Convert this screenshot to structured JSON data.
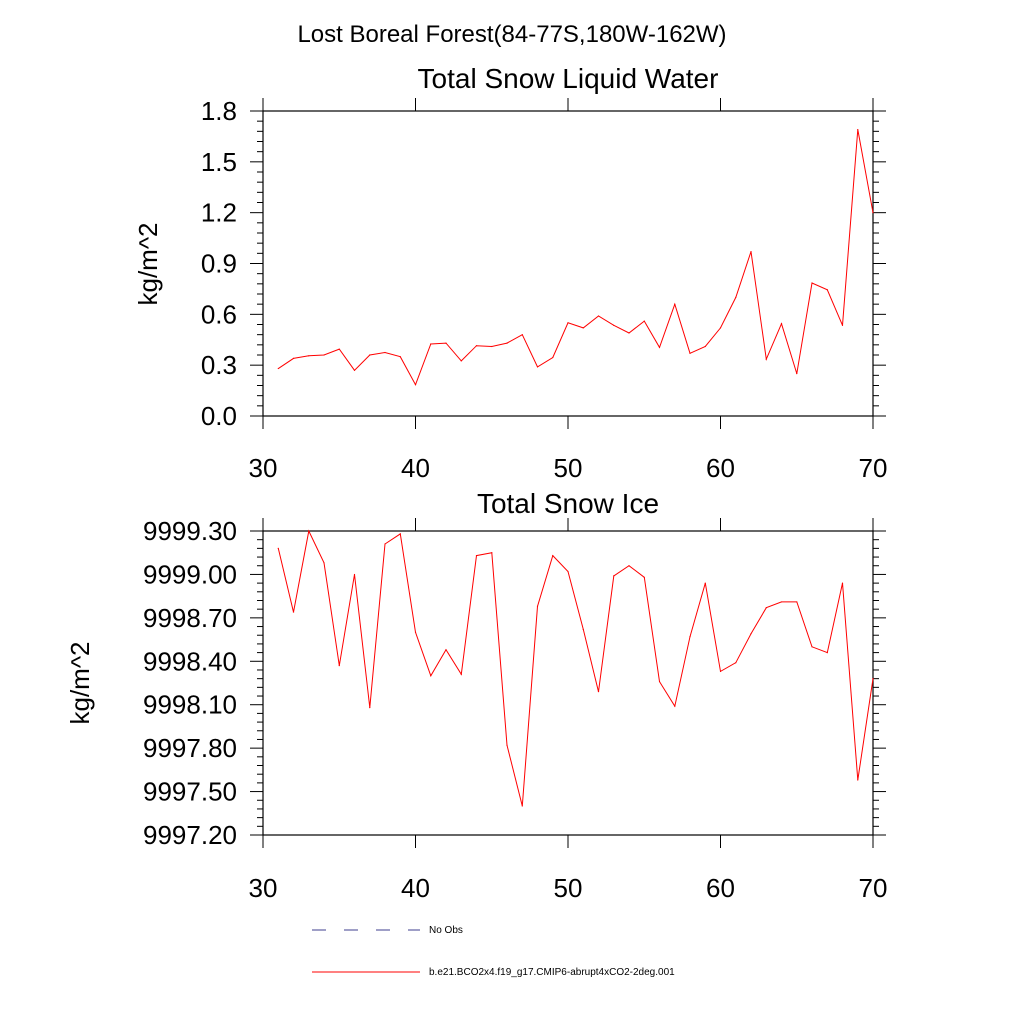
{
  "suptitle": "Lost Boreal Forest(84-77S,180W-162W)",
  "chart_data": [
    {
      "type": "line",
      "title": "Total Snow Liquid Water",
      "xlabel": "",
      "ylabel": "kg/m^2",
      "xlim": [
        30,
        70
      ],
      "ylim": [
        0.0,
        1.8
      ],
      "xticks": [
        "30",
        "40",
        "50",
        "60",
        "70"
      ],
      "xtick_values": [
        30,
        40,
        50,
        60,
        70
      ],
      "yticks": [
        "0.0",
        "0.3",
        "0.6",
        "0.9",
        "1.2",
        "1.5",
        "1.8"
      ],
      "ytick_values": [
        0.0,
        0.3,
        0.6,
        0.9,
        1.2,
        1.5,
        1.8
      ],
      "series": [
        {
          "name": "b.e21.BCO2x4.f19_g17.CMIP6-abrupt4xCO2-2deg.001",
          "color": "#ff0000",
          "x": [
            31,
            32,
            33,
            34,
            35,
            36,
            37,
            38,
            39,
            40,
            41,
            42,
            43,
            44,
            45,
            46,
            47,
            48,
            49,
            50,
            51,
            52,
            53,
            54,
            55,
            56,
            57,
            58,
            59,
            60,
            61,
            62,
            63,
            64,
            65,
            66,
            67,
            68,
            69,
            70
          ],
          "y": [
            0.28,
            0.34,
            0.355,
            0.36,
            0.395,
            0.27,
            0.36,
            0.375,
            0.35,
            0.185,
            0.425,
            0.43,
            0.325,
            0.415,
            0.41,
            0.43,
            0.48,
            0.29,
            0.345,
            0.55,
            0.52,
            0.59,
            0.535,
            0.49,
            0.56,
            0.405,
            0.66,
            0.37,
            0.41,
            0.52,
            0.7,
            0.97,
            0.335,
            0.545,
            0.25,
            0.785,
            0.745,
            0.535,
            1.69,
            1.2
          ]
        }
      ]
    },
    {
      "type": "line",
      "title": "Total Snow Ice",
      "xlabel": "",
      "ylabel": "kg/m^2",
      "xlim": [
        30,
        70
      ],
      "ylim": [
        9997.2,
        9999.3
      ],
      "xticks": [
        "30",
        "40",
        "50",
        "60",
        "70"
      ],
      "xtick_values": [
        30,
        40,
        50,
        60,
        70
      ],
      "yticks": [
        "9997.20",
        "9997.50",
        "9997.80",
        "9998.10",
        "9998.40",
        "9998.70",
        "9999.00",
        "9999.30"
      ],
      "ytick_values": [
        9997.2,
        9997.5,
        9997.8,
        9998.1,
        9998.4,
        9998.7,
        9999.0,
        9999.3
      ],
      "series": [
        {
          "name": "b.e21.BCO2x4.f19_g17.CMIP6-abrupt4xCO2-2deg.001",
          "color": "#ff0000",
          "x": [
            31,
            32,
            33,
            34,
            35,
            36,
            37,
            38,
            39,
            40,
            41,
            42,
            43,
            44,
            45,
            46,
            47,
            48,
            49,
            50,
            51,
            52,
            53,
            54,
            55,
            56,
            57,
            58,
            59,
            60,
            61,
            62,
            63,
            64,
            65,
            66,
            67,
            68,
            69,
            70
          ],
          "y": [
            9999.18,
            9998.74,
            9999.3,
            9999.08,
            9998.37,
            9999.0,
            9998.08,
            9999.21,
            9999.28,
            9998.6,
            9998.3,
            9998.48,
            9998.31,
            9999.13,
            9999.15,
            9997.82,
            9997.4,
            9998.78,
            9999.13,
            9999.02,
            9998.62,
            9998.19,
            9998.99,
            9999.06,
            9998.98,
            9998.26,
            9998.09,
            9998.57,
            9998.94,
            9998.33,
            9998.39,
            9998.59,
            9998.77,
            9998.81,
            9998.81,
            9998.5,
            9998.46,
            9998.94,
            9997.58,
            9998.28
          ]
        }
      ]
    }
  ],
  "legend": {
    "placement": "bottom-center",
    "entries": [
      {
        "label": "No Obs",
        "color": "#3f3f8f",
        "style": "dashed"
      },
      {
        "label": "b.e21.BCO2x4.f19_g17.CMIP6-abrupt4xCO2-2deg.001",
        "color": "#ff0000",
        "style": "solid"
      }
    ]
  }
}
